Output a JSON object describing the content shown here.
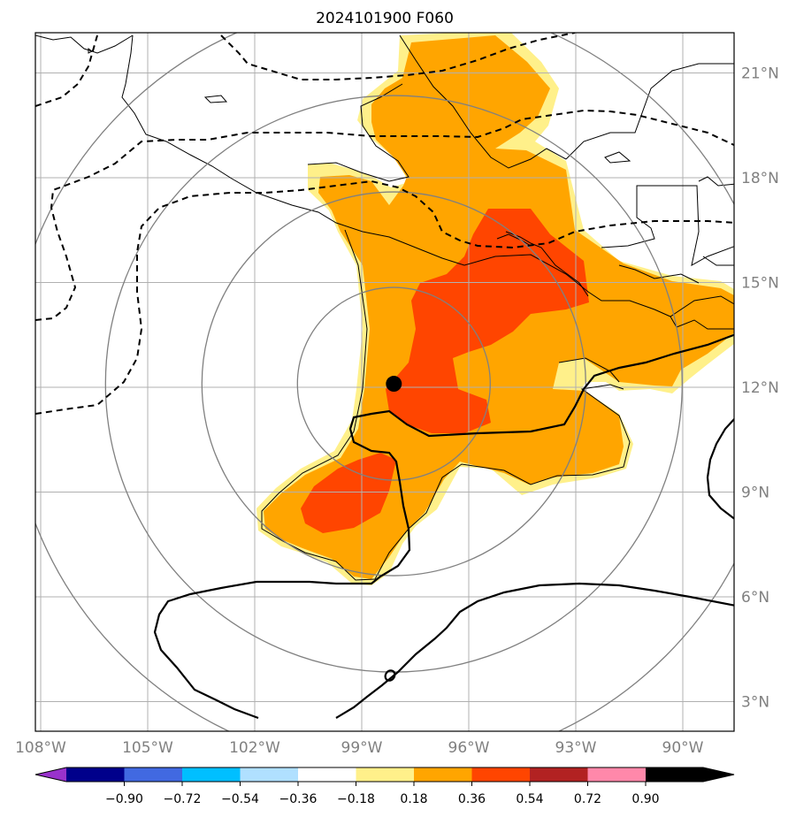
{
  "title": "2024101900 F060",
  "map": {
    "lon_labels": [
      "108°W",
      "105°W",
      "102°W",
      "99°W",
      "96°W",
      "93°W",
      "90°W"
    ],
    "lat_labels": [
      "21°N",
      "18°N",
      "15°N",
      "12°N",
      "9°N",
      "6°N",
      "3°N"
    ],
    "center_marker": {
      "name": "storm-center",
      "lon": -98.1,
      "lat": 12.1
    },
    "colors": {
      "fill_light": "#fff08a",
      "fill_mid": "#ffa500",
      "fill_dark": "#ff4500",
      "range_ring": "#808080",
      "gridline": "#b0b0b0"
    }
  },
  "colorbar": {
    "ticks": [
      "−0.90",
      "−0.72",
      "−0.54",
      "−0.36",
      "−0.18",
      "0.18",
      "0.36",
      "0.54",
      "0.72",
      "0.90"
    ],
    "colors": [
      "#9932cc",
      "#00008b",
      "#4169e1",
      "#00bfff",
      "#b0e0ff",
      "#ffffff",
      "#fff08a",
      "#ffa500",
      "#ff4500",
      "#b22222",
      "#ff88aa"
    ]
  }
}
